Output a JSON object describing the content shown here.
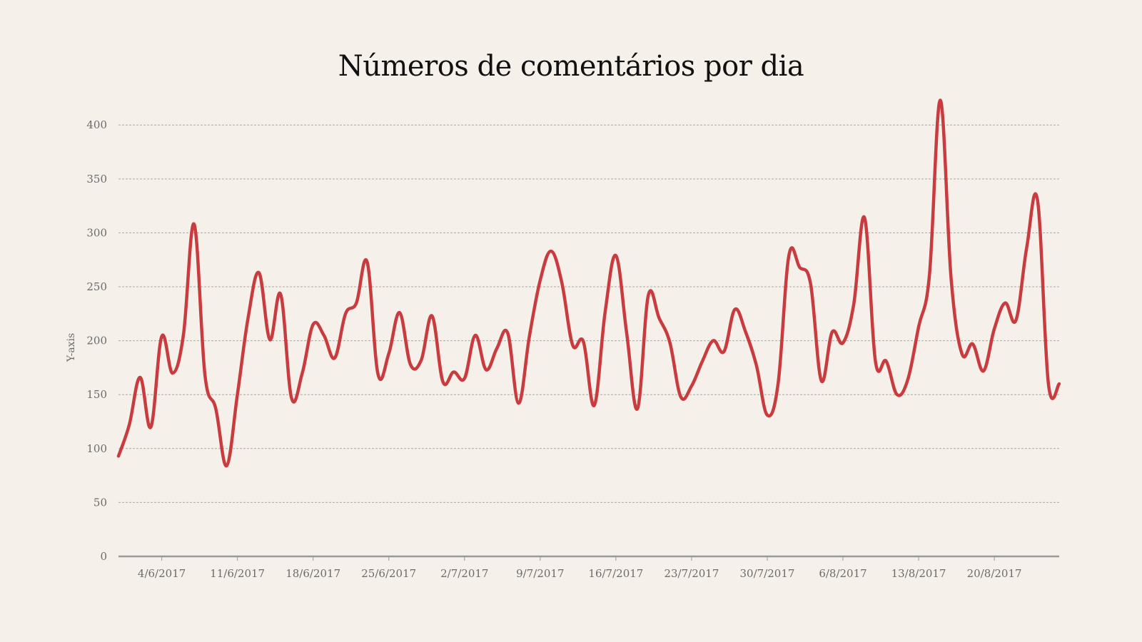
{
  "colors": {
    "background": "#f5f0ea",
    "line": "#c83c3f",
    "grid": "#a9a9a9",
    "axis": "#9a9a9a",
    "text": "#6b6b6b"
  },
  "chart_data": {
    "type": "line",
    "title": "Números de comentários por dia",
    "xlabel": "",
    "ylabel": "Y-axis",
    "ylim": [
      0,
      420
    ],
    "yticks": [
      0,
      50,
      100,
      150,
      200,
      250,
      300,
      350,
      400
    ],
    "grid": true,
    "xaxis_type": "date",
    "xlim": [
      "2017-05-31",
      "2017-08-26"
    ],
    "xticks": [
      {
        "date": "2017-06-04",
        "label": "4/6/2017"
      },
      {
        "date": "2017-06-11",
        "label": "11/6/2017"
      },
      {
        "date": "2017-06-18",
        "label": "18/6/2017"
      },
      {
        "date": "2017-06-25",
        "label": "25/6/2017"
      },
      {
        "date": "2017-07-02",
        "label": "2/7/2017"
      },
      {
        "date": "2017-07-09",
        "label": "9/7/2017"
      },
      {
        "date": "2017-07-16",
        "label": "16/7/2017"
      },
      {
        "date": "2017-07-23",
        "label": "23/7/2017"
      },
      {
        "date": "2017-07-30",
        "label": "30/7/2017"
      },
      {
        "date": "2017-08-06",
        "label": "6/8/2017"
      },
      {
        "date": "2017-08-13",
        "label": "13/8/2017"
      },
      {
        "date": "2017-08-20",
        "label": "20/8/2017"
      }
    ],
    "series": [
      {
        "dates": [
          "2017-05-31",
          "2017-06-01",
          "2017-06-02",
          "2017-06-03",
          "2017-06-04",
          "2017-06-05",
          "2017-06-06",
          "2017-06-07",
          "2017-06-08",
          "2017-06-09",
          "2017-06-10",
          "2017-06-11",
          "2017-06-12",
          "2017-06-13",
          "2017-06-14",
          "2017-06-15",
          "2017-06-16",
          "2017-06-17",
          "2017-06-18",
          "2017-06-19",
          "2017-06-20",
          "2017-06-21",
          "2017-06-22",
          "2017-06-23",
          "2017-06-24",
          "2017-06-25",
          "2017-06-26",
          "2017-06-27",
          "2017-06-28",
          "2017-06-29",
          "2017-06-30",
          "2017-07-01",
          "2017-07-02",
          "2017-07-03",
          "2017-07-04",
          "2017-07-05",
          "2017-07-06",
          "2017-07-07",
          "2017-07-08",
          "2017-07-09",
          "2017-07-10",
          "2017-07-11",
          "2017-07-12",
          "2017-07-13",
          "2017-07-14",
          "2017-07-15",
          "2017-07-16",
          "2017-07-17",
          "2017-07-18",
          "2017-07-19",
          "2017-07-20",
          "2017-07-21",
          "2017-07-22",
          "2017-07-23",
          "2017-07-24",
          "2017-07-25",
          "2017-07-26",
          "2017-07-27",
          "2017-07-28",
          "2017-07-29",
          "2017-07-30",
          "2017-07-31",
          "2017-08-01",
          "2017-08-02",
          "2017-08-03",
          "2017-08-04",
          "2017-08-05",
          "2017-08-06",
          "2017-08-07",
          "2017-08-08",
          "2017-08-09",
          "2017-08-10",
          "2017-08-11",
          "2017-08-12",
          "2017-08-13",
          "2017-08-14",
          "2017-08-15",
          "2017-08-16",
          "2017-08-17",
          "2017-08-18",
          "2017-08-19",
          "2017-08-20",
          "2017-08-21",
          "2017-08-22",
          "2017-08-23",
          "2017-08-24",
          "2017-08-25",
          "2017-08-26"
        ],
        "values": [
          93,
          122,
          166,
          120,
          204,
          170,
          205,
          308,
          168,
          137,
          84,
          150,
          222,
          263,
          201,
          243,
          147,
          170,
          215,
          205,
          184,
          225,
          235,
          273,
          169,
          188,
          226,
          178,
          182,
          223,
          162,
          171,
          165,
          205,
          173,
          193,
          207,
          142,
          204,
          256,
          283,
          254,
          196,
          199,
          140,
          226,
          279,
          207,
          137,
          242,
          221,
          198,
          148,
          158,
          181,
          200,
          190,
          229,
          208,
          177,
          131,
          160,
          279,
          268,
          253,
          163,
          208,
          198,
          234,
          314,
          181,
          181,
          150,
          164,
          213,
          261,
          423,
          258,
          188,
          197,
          172,
          211,
          235,
          219,
          287,
          330,
          160,
          160
        ]
      }
    ]
  }
}
